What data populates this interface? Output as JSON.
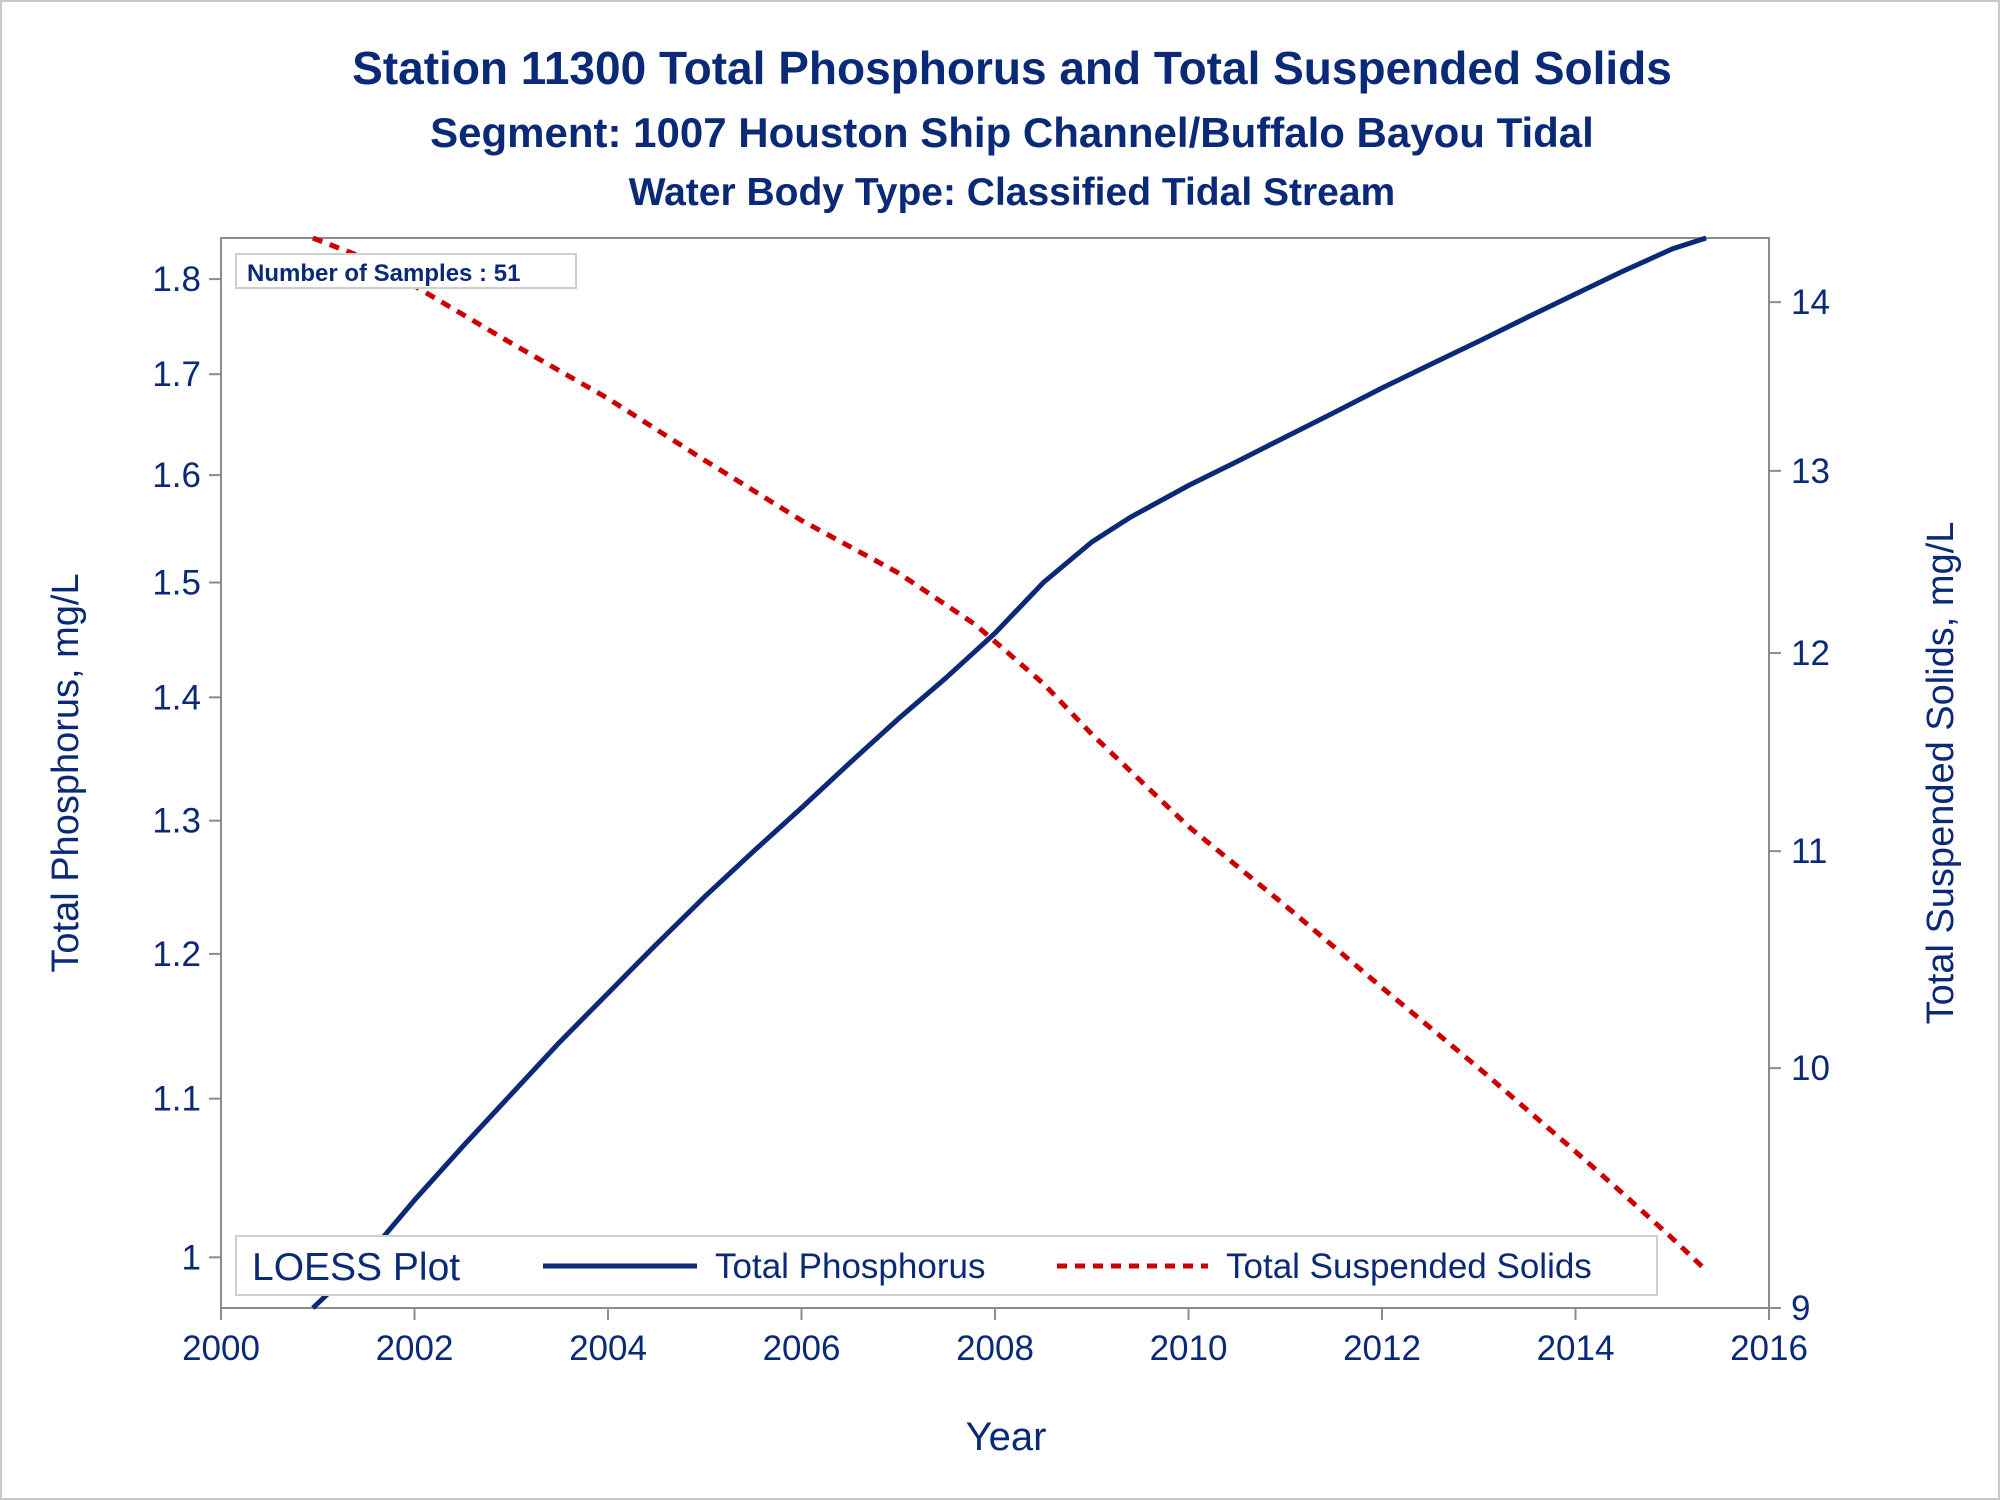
{
  "chart_data": {
    "type": "line",
    "title": "Station 11300  Total Phosphorus and Total Suspended Solids",
    "subtitle": "Segment: 1007  Houston Ship Channel/Buffalo Bayou Tidal",
    "subtitle2": "Water Body Type: Classified Tidal Stream",
    "xlabel": "Year",
    "ylabel_left": "Total Phosphorus, mg/L",
    "ylabel_right": "Total Suspended Solids, mg/L",
    "xlim": [
      2000,
      2016
    ],
    "ylim_left": [
      0.97,
      1.845
    ],
    "ylim_right": [
      9,
      14.4
    ],
    "y_left_scale": "log",
    "y_right_scale": "log",
    "x_ticks": [
      2000,
      2002,
      2004,
      2006,
      2008,
      2010,
      2012,
      2014,
      2016
    ],
    "y_left_ticks": [
      1,
      1.1,
      1.2,
      1.3,
      1.4,
      1.5,
      1.6,
      1.7,
      1.8
    ],
    "y_right_ticks": [
      9,
      10,
      11,
      12,
      13,
      14
    ],
    "annotation": "Number of Samples : 51",
    "legend": {
      "title": "LOESS Plot",
      "position": "bottom-inside",
      "entries": [
        "Total Phosphorus",
        "Total Suspended Solids"
      ]
    },
    "series": [
      {
        "name": "Total Phosphorus",
        "axis": "left",
        "color": "#0a2a78",
        "style": "solid",
        "x": [
          2000.95,
          2001.5,
          2002,
          2002.5,
          2003,
          2003.5,
          2004,
          2004.5,
          2005,
          2005.5,
          2006,
          2006.5,
          2007,
          2007.5,
          2008,
          2008.5,
          2009,
          2009.4,
          2010,
          2010.5,
          2011,
          2011.5,
          2012,
          2012.5,
          2013,
          2013.5,
          2014,
          2014.5,
          2015,
          2015.35
        ],
        "y": [
          0.97,
          1.0,
          1.035,
          1.069,
          1.103,
          1.138,
          1.172,
          1.207,
          1.242,
          1.276,
          1.31,
          1.346,
          1.382,
          1.417,
          1.455,
          1.5,
          1.537,
          1.56,
          1.59,
          1.613,
          1.637,
          1.661,
          1.686,
          1.71,
          1.734,
          1.759,
          1.784,
          1.809,
          1.833,
          1.845
        ]
      },
      {
        "name": "Total Suspended Solids",
        "axis": "right",
        "color": "#cc0000",
        "style": "dashed",
        "x": [
          2000.95,
          2001.5,
          2002,
          2003,
          2004,
          2005,
          2006,
          2007,
          2007.8,
          2008.5,
          2009,
          2010,
          2011,
          2012,
          2013,
          2014,
          2014.5,
          2015,
          2015.35
        ],
        "y": [
          14.4,
          14.27,
          14.1,
          13.75,
          13.42,
          13.06,
          12.72,
          12.43,
          12.15,
          11.84,
          11.58,
          11.12,
          10.74,
          10.36,
          10.0,
          9.64,
          9.46,
          9.28,
          9.15
        ]
      }
    ]
  }
}
